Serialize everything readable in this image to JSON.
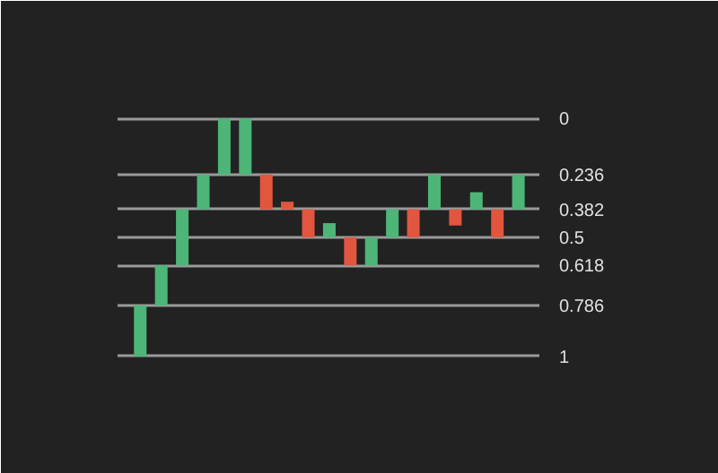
{
  "chart_data": {
    "type": "bar",
    "categories": [
      null,
      null,
      null,
      null,
      null,
      null,
      null,
      null,
      null,
      null,
      null,
      null,
      null,
      null,
      null,
      null,
      null,
      null,
      null
    ],
    "base": [
      0.786,
      0.618,
      0.382,
      0.236,
      0,
      0,
      0.236,
      0.35,
      0.382,
      0.44,
      0.5,
      0.5,
      0.382,
      0.382,
      0.236,
      0.382,
      0.31,
      0.382,
      0.236
    ],
    "values": [
      0.214,
      0.168,
      0.236,
      0.146,
      0.236,
      0.236,
      0.146,
      0.032,
      0.118,
      0.06,
      0.118,
      0.118,
      0.118,
      0.118,
      0.146,
      0.068,
      0.072,
      0.118,
      0.146
    ],
    "colors": [
      "#4db577",
      "#4db577",
      "#4db577",
      "#4db577",
      "#4db577",
      "#4db577",
      "#e2553f",
      "#e2553f",
      "#e2553f",
      "#4db577",
      "#e2553f",
      "#4db577",
      "#4db577",
      "#e2553f",
      "#4db577",
      "#e2553f",
      "#4db577",
      "#e2553f",
      "#4db577"
    ],
    "ylim": [
      1.05,
      -0.05
    ],
    "yticks": [
      0,
      0.236,
      0.382,
      0.5,
      0.618,
      0.786,
      1
    ],
    "grid": "y"
  }
}
